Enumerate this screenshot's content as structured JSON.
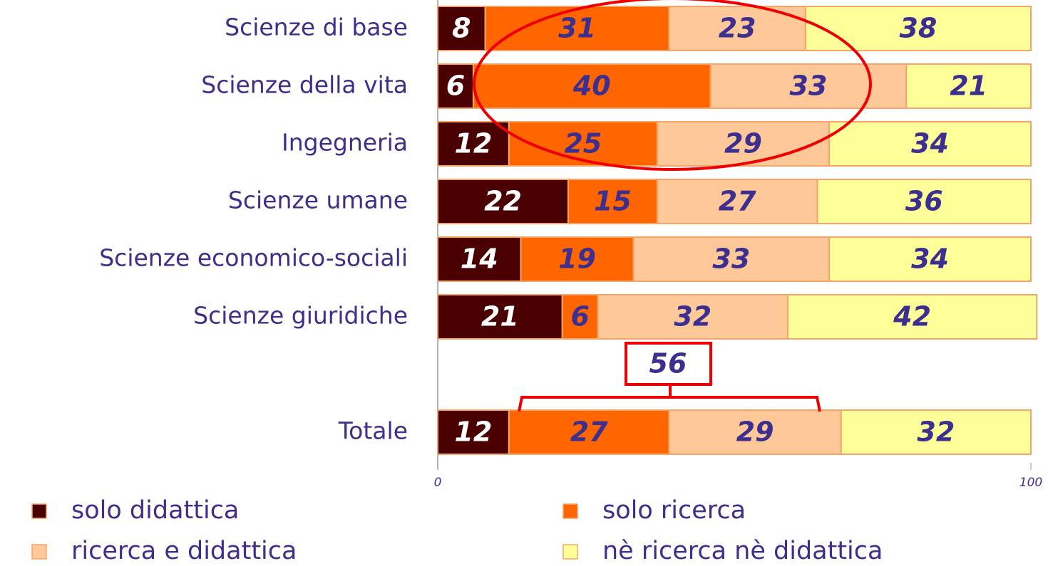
{
  "chart_data": {
    "type": "stacked_barh",
    "categories": [
      "Scienze di base",
      "Scienze della vita",
      "Ingegneria",
      "Scienze umane",
      "Scienze economico-sociali",
      "Scienze giuridiche",
      null,
      "Totale"
    ],
    "series": [
      {
        "name": "solo didattica",
        "color": "#4a0000",
        "label_color": "#ffffff",
        "values": [
          8,
          6,
          12,
          22,
          14,
          21,
          null,
          12
        ]
      },
      {
        "name": "solo ricerca",
        "color": "#ff6600",
        "label_color": "#3c2f8f",
        "values": [
          31,
          40,
          25,
          15,
          19,
          6,
          null,
          27
        ]
      },
      {
        "name": "ricerca e didattica",
        "color": "#ffc899",
        "label_color": "#3c2f8f",
        "values": [
          23,
          33,
          29,
          27,
          33,
          32,
          null,
          29
        ]
      },
      {
        "name": "nè ricerca nè didattica",
        "color": "#ffff99",
        "label_color": "#3c2f8f",
        "values": [
          38,
          21,
          34,
          36,
          34,
          42,
          null,
          32
        ]
      }
    ],
    "xlim": [
      0,
      100
    ],
    "xticks": [
      0,
      100
    ],
    "annotation": "56"
  }
}
